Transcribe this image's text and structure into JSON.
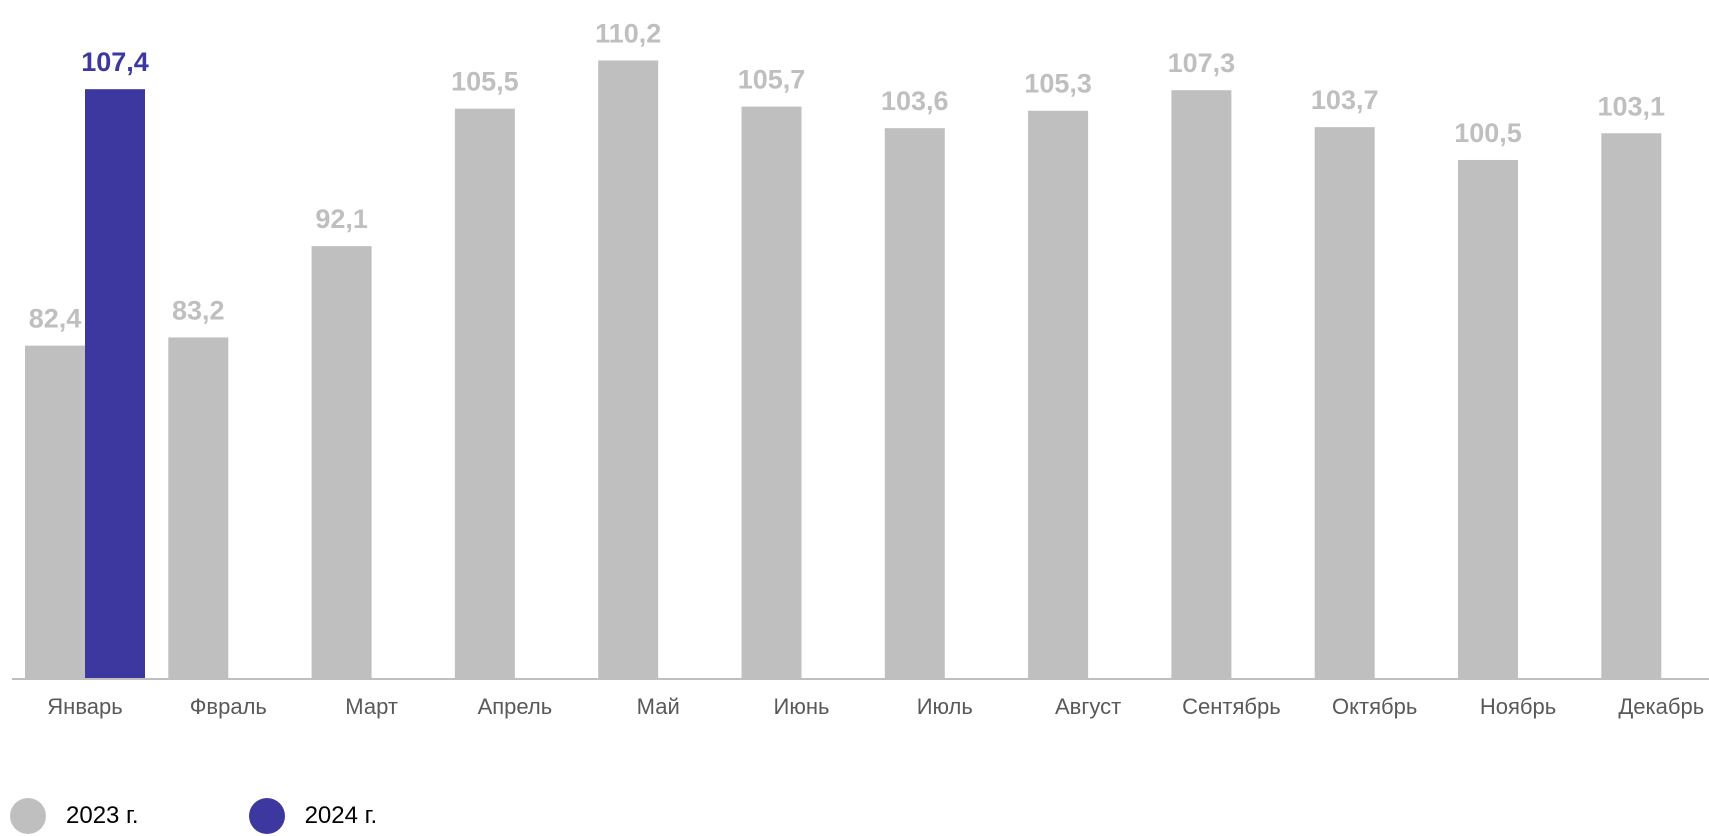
{
  "chart_data": {
    "type": "bar",
    "categories": [
      "Январь",
      "Фвраль",
      "Март",
      "Апрель",
      "Май",
      "Июнь",
      "Июль",
      "Август",
      "Сентябрь",
      "Октябрь",
      "Ноябрь",
      "Декабрь"
    ],
    "series": [
      {
        "name": "2023 г.",
        "color": "#bfbfbf",
        "values": [
          82.4,
          83.2,
          92.1,
          105.5,
          110.2,
          105.7,
          103.6,
          105.3,
          107.3,
          103.7,
          100.5,
          103.1
        ],
        "labels": [
          "82,4",
          "83,2",
          "92,1",
          "105,5",
          "110,2",
          "105,7",
          "103,6",
          "105,3",
          "107,3",
          "103,7",
          "100,5",
          "103,1"
        ]
      },
      {
        "name": "2024 г.",
        "color": "#3d37a0",
        "values": [
          107.4,
          null,
          null,
          null,
          null,
          null,
          null,
          null,
          null,
          null,
          null,
          null
        ],
        "labels": [
          "107,4",
          "",
          "",
          "",
          "",
          "",
          "",
          "",
          "",
          "",
          "",
          ""
        ]
      }
    ],
    "ylim": [
      50,
      112
    ],
    "legend_position": "bottom-left",
    "grid": false,
    "title": "",
    "xlabel": "",
    "ylabel": ""
  }
}
